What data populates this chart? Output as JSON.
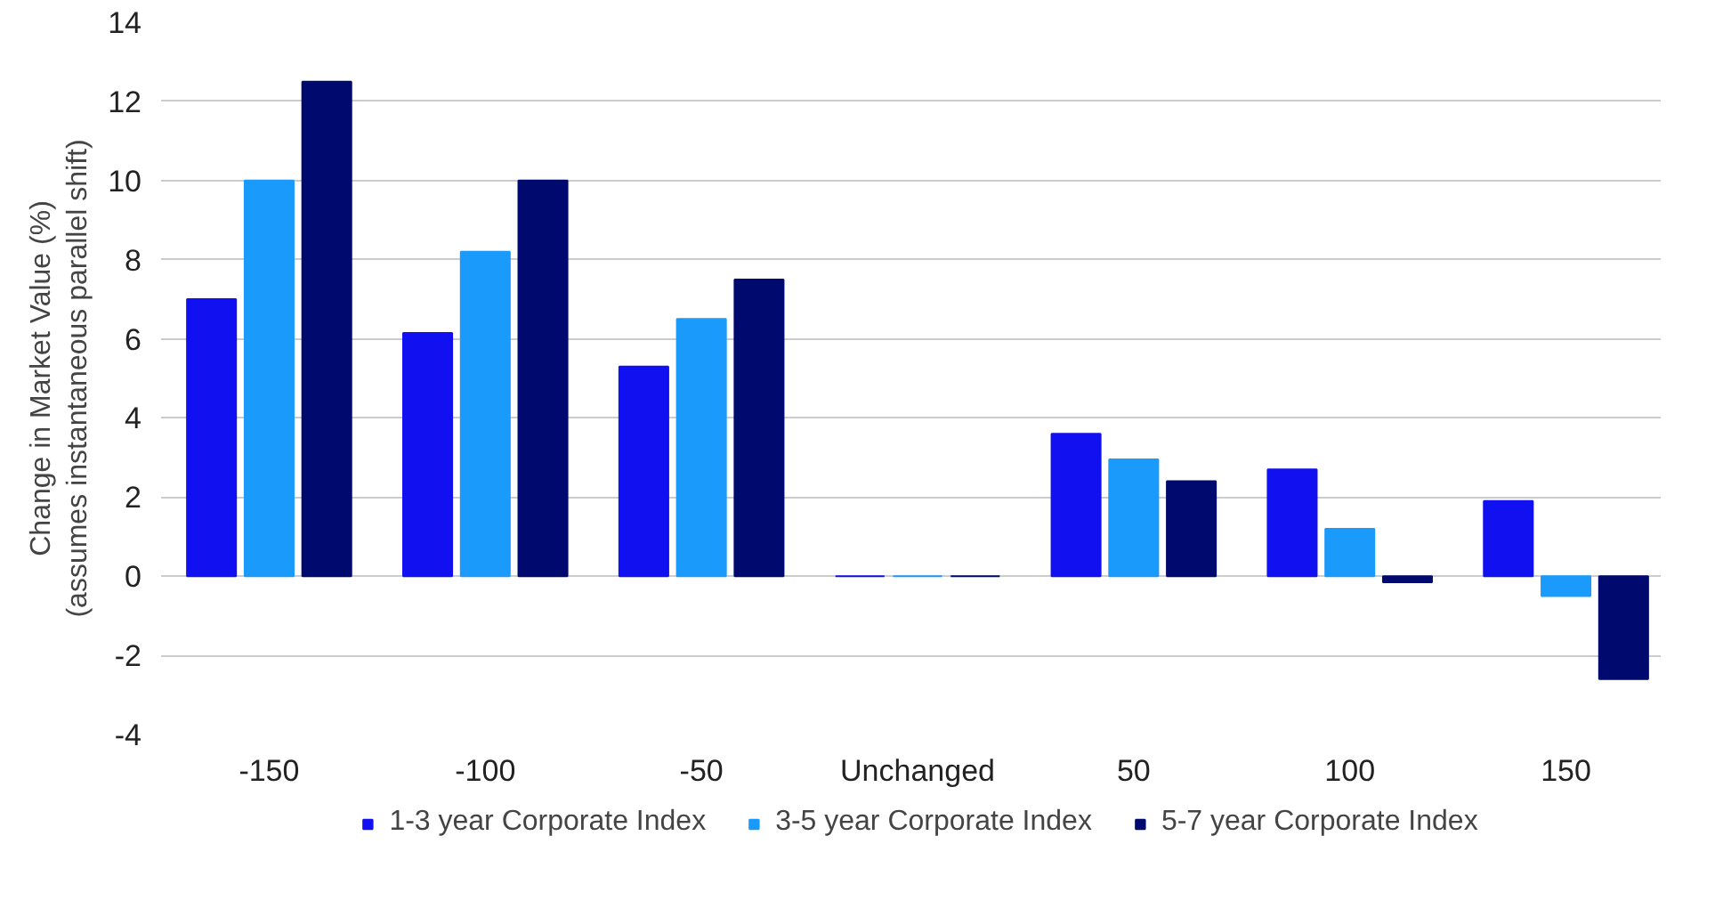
{
  "chart_data": {
    "type": "bar",
    "ylabel": "Change in Market Value (%)\n(assumes instantaneous parallel shift)",
    "categories": [
      "-150",
      "-100",
      "-50",
      "Unchanged",
      "50",
      "100",
      "150"
    ],
    "series": [
      {
        "name": "1-3 year Corporate Index",
        "color": "#1010f0",
        "values": [
          7.0,
          6.15,
          5.3,
          0,
          3.6,
          2.7,
          1.9
        ]
      },
      {
        "name": "3-5 year Corporate Index",
        "color": "#1a9bfc",
        "values": [
          10.0,
          8.2,
          6.5,
          0,
          2.95,
          1.2,
          -0.5
        ]
      },
      {
        "name": "5-7 year Corporate Index",
        "color": "#000a6e",
        "values": [
          12.5,
          10.0,
          7.5,
          0,
          2.4,
          -0.15,
          -2.6
        ]
      }
    ],
    "ylim": [
      -4,
      14
    ],
    "yticks": [
      -4,
      -2,
      0,
      2,
      4,
      6,
      8,
      10,
      12,
      14
    ],
    "grid": "y",
    "legend": "bottom"
  }
}
